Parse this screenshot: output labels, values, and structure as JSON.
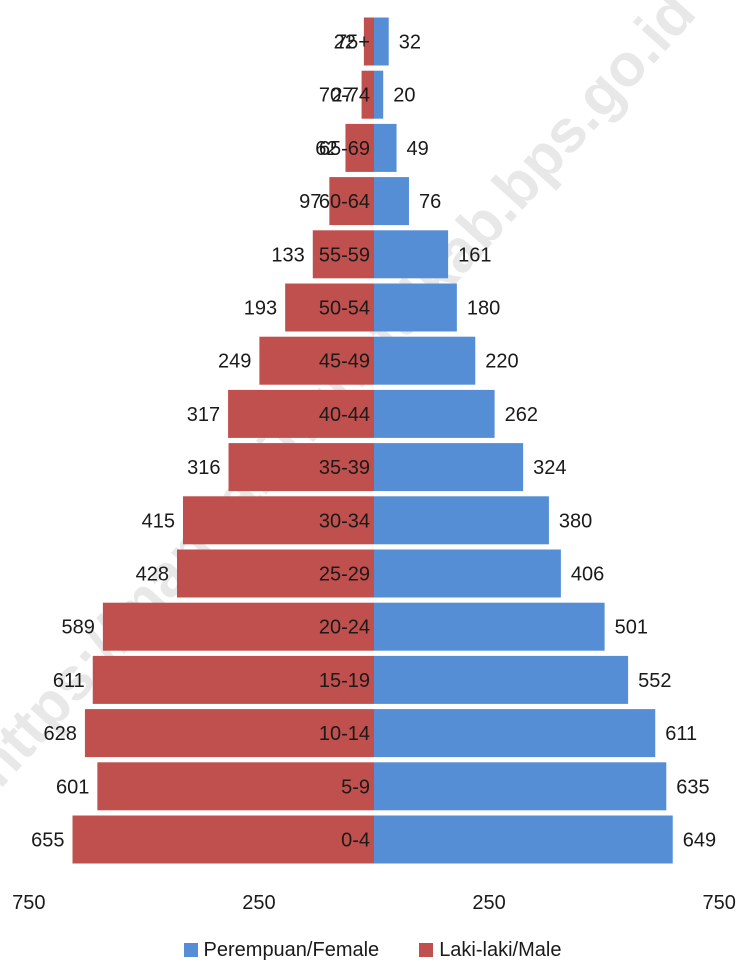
{
  "chart_data": {
    "type": "bar",
    "orientation": "horizontal",
    "layout": "population-pyramid",
    "categories": [
      "0-4",
      "5-9",
      "10-14",
      "15-19",
      "20-24",
      "25-29",
      "30-34",
      "35-39",
      "40-44",
      "45-49",
      "50-54",
      "55-59",
      "60-64",
      "65-69",
      "70-74",
      "75+"
    ],
    "series": [
      {
        "name": "Perempuan/Female",
        "side": "right",
        "color": "#558ED5",
        "values": [
          649,
          635,
          611,
          552,
          501,
          406,
          380,
          324,
          262,
          220,
          180,
          161,
          76,
          49,
          20,
          32
        ]
      },
      {
        "name": "Laki-laki/Male",
        "side": "left",
        "color": "#C0504D",
        "values": [
          655,
          601,
          628,
          611,
          589,
          428,
          415,
          316,
          317,
          249,
          193,
          133,
          97,
          62,
          27,
          22
        ]
      }
    ],
    "x_ticks": [
      "750",
      "250",
      "250",
      "750"
    ],
    "xlim": [
      -750,
      750
    ],
    "legend": "bottom",
    "grid": false
  },
  "watermark": {
    "text": "https://mandailingnatalkab.bps.go.id",
    "color": "#e6e6e6"
  }
}
